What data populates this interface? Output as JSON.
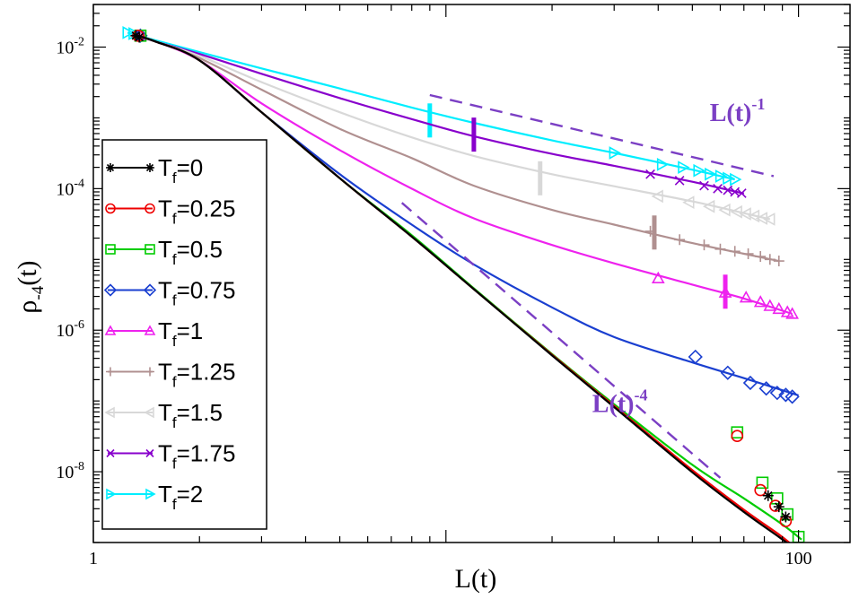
{
  "chart_data": {
    "type": "line",
    "xscale": "log",
    "yscale": "log",
    "xlim": [
      1,
      140
    ],
    "ylim": [
      1e-09,
      0.04
    ],
    "xlabel": "L(t)",
    "ylabel_main": "ρ",
    "ylabel_sub": "-4",
    "ylabel_tail": "(t)",
    "xticks": [
      {
        "v": 1,
        "label": "1"
      },
      {
        "v": 100,
        "label": "100"
      }
    ],
    "yticks": [
      {
        "v": 0.01,
        "base": "10",
        "exp": "-2"
      },
      {
        "v": 0.0001,
        "base": "10",
        "exp": "-4"
      },
      {
        "v": 1e-06,
        "base": "10",
        "exp": "-6"
      },
      {
        "v": 1e-08,
        "base": "10",
        "exp": "-8"
      }
    ],
    "series": [
      {
        "name": "T_f=0",
        "label_main": "T",
        "label_sub": "f",
        "label_tail": "=0",
        "color": "#000000",
        "marker": "star",
        "x": [
          1.3,
          1.5,
          2,
          3,
          5,
          8,
          12,
          20,
          30,
          50,
          70,
          88,
          95
        ],
        "y": [
          0.015,
          0.012,
          0.0065,
          0.0012,
          0.00014,
          2.1e-05,
          3.8e-06,
          4.4e-07,
          8.2e-08,
          9.8e-09,
          2.7e-09,
          1.2e-09,
          9e-10
        ],
        "mx": [
          1.32,
          1.35,
          82,
          88,
          92
        ],
        "my": [
          0.0145,
          0.0138,
          4.6e-09,
          3.2e-09,
          2.3e-09
        ]
      },
      {
        "name": "T_f=0.25",
        "label_main": "T",
        "label_sub": "f",
        "label_tail": "=0.25",
        "color": "#ee0000",
        "marker": "circle",
        "x": [
          1.3,
          1.5,
          2,
          3,
          5,
          8,
          12,
          20,
          30,
          50,
          70,
          88,
          96
        ],
        "y": [
          0.015,
          0.012,
          0.0065,
          0.0012,
          0.00014,
          2.1e-05,
          3.8e-06,
          4.5e-07,
          8.5e-08,
          1.05e-08,
          2.9e-09,
          1.3e-09,
          9.2e-10
        ],
        "mx": [
          1.34,
          67,
          78,
          86,
          92
        ],
        "my": [
          0.0145,
          3.2e-08,
          5.5e-09,
          3.3e-09,
          2e-09
        ]
      },
      {
        "name": "T_f=0.5",
        "label_main": "T",
        "label_sub": "f",
        "label_tail": "=0.5",
        "color": "#00cc00",
        "marker": "square",
        "x": [
          1.3,
          1.5,
          2,
          3,
          5,
          8,
          12,
          20,
          30,
          50,
          70,
          90,
          102
        ],
        "y": [
          0.015,
          0.012,
          0.0065,
          0.0012,
          0.00014,
          2.2e-05,
          3.9e-06,
          4.6e-07,
          9e-08,
          1.25e-08,
          4.2e-09,
          1.8e-09,
          1.1e-09
        ],
        "mx": [
          1.36,
          67,
          79,
          87,
          93,
          100
        ],
        "my": [
          0.0145,
          3.6e-08,
          7e-09,
          4.2e-09,
          2.5e-09,
          1.2e-09
        ]
      },
      {
        "name": "T_f=0.75",
        "label_main": "T",
        "label_sub": "f",
        "label_tail": "=0.75",
        "color": "#1a3fd0",
        "marker": "diamond",
        "x": [
          1.3,
          1.5,
          2,
          3,
          5,
          8,
          12,
          20,
          30,
          50,
          70,
          100
        ],
        "y": [
          0.015,
          0.012,
          0.0065,
          0.0012,
          0.00016,
          3.1e-05,
          8.5e-06,
          2.1e-06,
          8e-07,
          3.5e-07,
          2.1e-07,
          1.2e-07
        ],
        "mx": [
          1.36,
          51,
          63,
          73,
          81,
          87,
          92,
          96
        ],
        "my": [
          0.0145,
          4.2e-07,
          2.5e-07,
          1.8e-07,
          1.5e-07,
          1.3e-07,
          1.22e-07,
          1.15e-07
        ]
      },
      {
        "name": "T_f=1",
        "label_main": "T",
        "label_sub": "f",
        "label_tail": "=1",
        "color": "#ee22ee",
        "marker": "triangle-up",
        "x": [
          1.3,
          1.5,
          2,
          3,
          5,
          8,
          12,
          20,
          30,
          50,
          70,
          96
        ],
        "y": [
          0.015,
          0.012,
          0.0065,
          0.0016,
          0.00035,
          0.0001,
          3.8e-05,
          1.6e-05,
          8.8e-06,
          4.4e-06,
          2.8e-06,
          1.7e-06
        ],
        "mx": [
          1.36,
          40,
          62,
          71,
          78,
          83,
          88,
          93,
          96
        ],
        "my": [
          0.0145,
          5.4e-06,
          3.4e-06,
          2.9e-06,
          2.5e-06,
          2.2e-06,
          2e-06,
          1.8e-06,
          1.7e-06
        ],
        "bar_x": 62,
        "bar_y": 3.5e-06
      },
      {
        "name": "T_f=1.25",
        "label_main": "T",
        "label_sub": "f",
        "label_tail": "=1.25",
        "color": "#b09090",
        "marker": "plus",
        "x": [
          1.3,
          1.5,
          2,
          3,
          5,
          8,
          12,
          20,
          30,
          50,
          70,
          88
        ],
        "y": [
          0.015,
          0.012,
          0.007,
          0.0025,
          0.0007,
          0.00027,
          0.00011,
          5e-05,
          3.1e-05,
          1.7e-05,
          1.2e-05,
          9.5e-06
        ],
        "mx": [
          1.36,
          38,
          46,
          54,
          60,
          66,
          72,
          78,
          83,
          88
        ],
        "my": [
          0.0145,
          2.5e-05,
          1.9e-05,
          1.6e-05,
          1.4e-05,
          1.3e-05,
          1.2e-05,
          1.1e-05,
          1e-05,
          9.5e-06
        ],
        "bar_x": 39,
        "bar_y": 2.4e-05
      },
      {
        "name": "T_f=1.5",
        "label_main": "T",
        "label_sub": "f",
        "label_tail": "=1.5",
        "color": "#d8d8d8",
        "marker": "triangle-left",
        "x": [
          1.3,
          1.5,
          2,
          3,
          5,
          8,
          12,
          20,
          30,
          50,
          70,
          83
        ],
        "y": [
          0.015,
          0.012,
          0.0075,
          0.0032,
          0.0012,
          0.00053,
          0.00029,
          0.00016,
          0.000108,
          6.6e-05,
          4.5e-05,
          3.7e-05
        ],
        "mx": [
          1.36,
          40,
          49,
          56,
          62,
          67,
          71,
          75,
          79,
          83
        ],
        "my": [
          0.0145,
          7.8e-05,
          6.4e-05,
          5.6e-05,
          5e-05,
          4.7e-05,
          4.4e-05,
          4.1e-05,
          3.8e-05,
          3.7e-05
        ],
        "bar_x": 18.5,
        "bar_y": 0.00014
      },
      {
        "name": "T_f=1.75",
        "label_main": "T",
        "label_sub": "f",
        "label_tail": "=1.75",
        "color": "#8800cc",
        "marker": "x",
        "x": [
          1.3,
          1.5,
          2,
          3,
          5,
          8,
          12,
          20,
          30,
          50,
          70
        ],
        "y": [
          0.015,
          0.012,
          0.008,
          0.0042,
          0.0019,
          0.00096,
          0.00055,
          0.00031,
          0.00021,
          0.000125,
          8.5e-05
        ],
        "mx": [
          1.36,
          38,
          46,
          54,
          59,
          63,
          66,
          69
        ],
        "my": [
          0.0145,
          0.00016,
          0.00013,
          0.00011,
          0.0001,
          9.5e-05,
          9e-05,
          8.6e-05
        ],
        "bar_x": 12,
        "bar_y": 0.00058
      },
      {
        "name": "T_f=2",
        "label_main": "T",
        "label_sub": "f",
        "label_tail": "=2",
        "color": "#00eeff",
        "marker": "triangle-right",
        "x": [
          1.25,
          1.5,
          2,
          3,
          5,
          8,
          12,
          20,
          30,
          50,
          66
        ],
        "y": [
          0.016,
          0.0125,
          0.0085,
          0.005,
          0.0026,
          0.0014,
          0.00085,
          0.00048,
          0.00032,
          0.000185,
          0.000135
        ],
        "mx": [
          1.25,
          1.3,
          30,
          41,
          47,
          52,
          56,
          60,
          63,
          66
        ],
        "my": [
          0.016,
          0.0155,
          0.00032,
          0.00022,
          0.0002,
          0.00018,
          0.00016,
          0.00015,
          0.00014,
          0.000135
        ],
        "bar_x": 9,
        "bar_y": 0.00092
      }
    ],
    "guides": [
      {
        "name": "L(t)^-1",
        "x": [
          9,
          85
        ],
        "y": [
          0.0021,
          0.00015
        ],
        "color": "#7b3fc4",
        "text_main": "L(t)",
        "text_exp": "-1",
        "tx": 56,
        "ty": 0.0009
      },
      {
        "name": "L(t)^-4",
        "x": [
          7.5,
          60
        ],
        "y": [
          6.3e-05,
          8.2e-09
        ],
        "color": "#7b3fc4",
        "text_main": "L(t)",
        "text_exp": "-4",
        "tx": 26,
        "ty": 7e-08
      }
    ]
  }
}
